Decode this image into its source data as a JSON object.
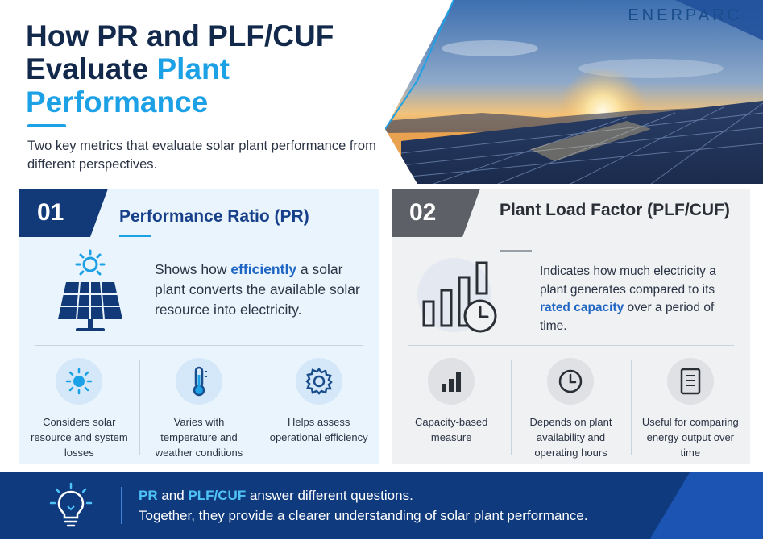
{
  "header": {
    "title_part1": "How PR and PLF/CUF Evaluate ",
    "title_highlight": "Plant Performance",
    "subtitle": "Two key metrics that evaluate solar plant performance from different perspectives.",
    "brand": "ENERPARC"
  },
  "colors": {
    "navy": "#13294b",
    "accent_blue": "#1da1e6",
    "pr_badge": "#123a78",
    "plf_badge": "#5d6167",
    "banner": "#0f3a7d",
    "banner_highlight": "#4fc3f7"
  },
  "pr_card": {
    "number": "01",
    "title": "Performance Ratio (PR)",
    "desc_before": "Shows how ",
    "desc_emphasis": "efficiently",
    "desc_after": " a solar plant converts the available solar resource into electricity.",
    "main_icon": "solar-panel-icon",
    "features": [
      {
        "icon": "sun-icon",
        "text": "Considers solar resource and system losses"
      },
      {
        "icon": "thermometer-icon",
        "text": "Varies with temperature and weather conditions"
      },
      {
        "icon": "gear-icon",
        "text": "Helps assess operational efficiency"
      }
    ]
  },
  "plf_card": {
    "number": "02",
    "title": "Plant Load Factor (PLF/CUF)",
    "desc_before": "Indicates how much electricity a plant generates compared to its ",
    "desc_emphasis": "rated capacity",
    "desc_after": " over a period of time.",
    "main_icon": "bar-chart-clock-icon",
    "features": [
      {
        "icon": "bar-chart-icon",
        "text": "Capacity-based measure"
      },
      {
        "icon": "clock-icon",
        "text": "Depends on plant availability and operating hours"
      },
      {
        "icon": "document-icon",
        "text": "Useful for comparing energy output over time"
      }
    ]
  },
  "banner": {
    "icon": "lightbulb-icon",
    "term1": "PR",
    "joiner": " and ",
    "term2": "PLF/CUF",
    "line1_rest": " answer different questions.",
    "line2": "Together, they provide a clearer understanding of solar plant performance."
  }
}
